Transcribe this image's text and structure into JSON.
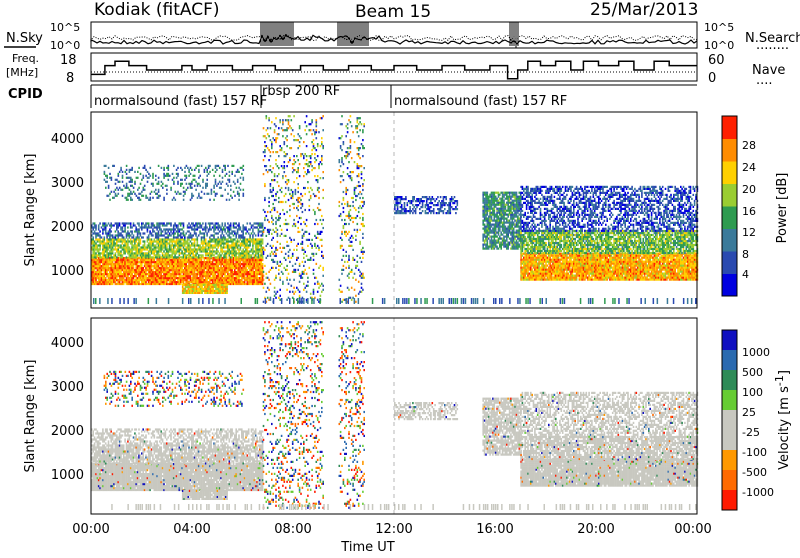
{
  "header": {
    "station": "Kodiak (fitACF)",
    "beam": "Beam 15",
    "date": "25/Mar/2013"
  },
  "noise_panel": {
    "left_label": "N.Sky",
    "right_label": "N.Search",
    "right_dots": "........",
    "tick_top": "10^5",
    "tick_bottom": "10^0",
    "right_tick_top": "10^5",
    "right_tick_bottom": "10^0"
  },
  "freq_panel": {
    "left_label_1": "Freq.",
    "left_label_2": "[MHz]",
    "tick_top": "18",
    "tick_bottom": "8",
    "right_label": "Nave",
    "right_dots": "....",
    "right_tick_top": "60",
    "right_tick_bottom": "0",
    "freq_steps": [
      [
        0,
        11
      ],
      [
        0.55,
        11
      ],
      [
        0.55,
        15
      ],
      [
        0.95,
        15
      ],
      [
        0.95,
        17
      ],
      [
        1.5,
        17
      ],
      [
        1.5,
        15
      ],
      [
        2.2,
        15
      ],
      [
        2.2,
        13
      ],
      [
        3.0,
        13
      ],
      [
        3.0,
        13
      ],
      [
        3.6,
        13
      ],
      [
        3.6,
        15
      ],
      [
        4.0,
        15
      ],
      [
        4.0,
        13
      ],
      [
        4.6,
        13
      ],
      [
        4.6,
        15
      ],
      [
        5.6,
        15
      ],
      [
        5.6,
        13
      ],
      [
        6.4,
        13
      ],
      [
        6.4,
        15
      ],
      [
        7.3,
        15
      ],
      [
        7.3,
        13
      ],
      [
        8.3,
        13
      ],
      [
        8.3,
        15
      ],
      [
        9.2,
        15
      ],
      [
        9.2,
        13
      ],
      [
        10.2,
        13
      ],
      [
        10.2,
        15
      ],
      [
        11.1,
        15
      ],
      [
        11.1,
        13
      ],
      [
        12.0,
        13
      ],
      [
        12.0,
        15
      ],
      [
        12.9,
        15
      ],
      [
        12.9,
        13
      ],
      [
        13.9,
        13
      ],
      [
        13.9,
        15
      ],
      [
        14.8,
        15
      ],
      [
        14.8,
        13
      ],
      [
        15.8,
        13
      ],
      [
        15.8,
        15
      ],
      [
        16.5,
        15
      ],
      [
        16.5,
        9
      ],
      [
        16.9,
        9
      ],
      [
        16.9,
        13
      ],
      [
        17.3,
        13
      ],
      [
        17.3,
        17
      ],
      [
        17.8,
        17
      ],
      [
        17.8,
        15
      ],
      [
        18.4,
        15
      ],
      [
        18.4,
        17
      ],
      [
        19.0,
        17
      ],
      [
        19.0,
        13
      ],
      [
        19.5,
        13
      ],
      [
        19.5,
        17
      ],
      [
        20.1,
        17
      ],
      [
        20.1,
        15
      ],
      [
        20.9,
        15
      ],
      [
        20.9,
        17
      ],
      [
        21.5,
        17
      ],
      [
        21.5,
        13
      ],
      [
        22.3,
        13
      ],
      [
        22.3,
        17
      ],
      [
        22.9,
        17
      ],
      [
        22.9,
        15
      ],
      [
        24,
        15
      ]
    ]
  },
  "cpid": {
    "label": "CPID",
    "segments": [
      {
        "start": 0,
        "end": 6.8,
        "text": "normalsound (fast) 157 RF"
      },
      {
        "start": 6.8,
        "end": 12.0,
        "text": "rbsp 200 RF"
      },
      {
        "start": 12.0,
        "end": 24.0,
        "text": "normalsound (fast) 157 RF"
      }
    ]
  },
  "power_panel": {
    "ylabel": "Slant Range [km]",
    "yticks": [
      "1000",
      "2000",
      "3000",
      "4000"
    ],
    "colorbar_label": "Power [dB]",
    "colorbar_ticks": [
      "4",
      "8",
      "12",
      "16",
      "20",
      "24",
      "28"
    ],
    "colors": [
      "#0000e0",
      "#2a4ab0",
      "#3a7a9a",
      "#2e9b50",
      "#9acd32",
      "#ffd000",
      "#ff8c00",
      "#ff2000"
    ]
  },
  "velocity_panel": {
    "ylabel": "Slant Range [km]",
    "yticks": [
      "1000",
      "2000",
      "3000",
      "4000"
    ],
    "colorbar_label": "Velocity [m s",
    "colorbar_label_sup": "-1",
    "colorbar_label_end": "]",
    "colorbar_ticks": [
      "1000",
      "500",
      "100",
      "25",
      "-25",
      "-100",
      "-500",
      "-1000"
    ],
    "colors": [
      "#1010c0",
      "#2a6ab0",
      "#2e8b57",
      "#66cc33",
      "#c8c8c0",
      "#c8c8c0",
      "#ff9900",
      "#ff6a00",
      "#ff1a00"
    ]
  },
  "time_axis": {
    "label": "Time UT",
    "ticks": [
      "00:00",
      "04:00",
      "08:00",
      "12:00",
      "16:00",
      "20:00",
      "00:00"
    ]
  },
  "chart_data": {
    "type": "heatmap",
    "title": "Kodiak (fitACF) Beam 15 25/Mar/2013",
    "xlabel": "Time UT",
    "ylabel": "Slant Range [km]",
    "xlim": [
      0,
      24
    ],
    "ylim": [
      180,
      4600
    ],
    "power_range_db": [
      0,
      32
    ],
    "velocity_range": [
      -1500,
      1500
    ],
    "regions": [
      {
        "t0": 0.0,
        "t1": 6.8,
        "r0": 700,
        "r1": 1300,
        "level": "strong",
        "power_db": 26
      },
      {
        "t0": 0.0,
        "t1": 6.8,
        "r0": 1300,
        "r1": 1750,
        "level": "medium",
        "power_db": 18
      },
      {
        "t0": 0.0,
        "t1": 6.8,
        "r0": 1750,
        "r1": 2100,
        "level": "weak",
        "power_db": 8
      },
      {
        "t0": 0.5,
        "t1": 6.0,
        "r0": 2600,
        "r1": 3400,
        "level": "sparse",
        "power_db": 10
      },
      {
        "t0": 3.6,
        "t1": 5.4,
        "r0": 500,
        "r1": 700,
        "level": "strong",
        "power_db": 22
      },
      {
        "t0": 6.8,
        "t1": 9.2,
        "r0": 300,
        "r1": 4500,
        "level": "noise",
        "power_db": 10
      },
      {
        "t0": 9.8,
        "t1": 10.8,
        "r0": 300,
        "r1": 4500,
        "level": "noise",
        "power_db": 8
      },
      {
        "t0": 12.0,
        "t1": 14.5,
        "r0": 2300,
        "r1": 2700,
        "level": "weak",
        "power_db": 6
      },
      {
        "t0": 15.5,
        "t1": 17.0,
        "r0": 1500,
        "r1": 2800,
        "level": "medium",
        "power_db": 12
      },
      {
        "t0": 17.0,
        "t1": 24.0,
        "r0": 800,
        "r1": 1400,
        "level": "strong",
        "power_db": 24
      },
      {
        "t0": 17.0,
        "t1": 24.0,
        "r0": 1400,
        "r1": 1900,
        "level": "medium",
        "power_db": 16
      },
      {
        "t0": 17.0,
        "t1": 24.0,
        "r0": 1900,
        "r1": 2900,
        "level": "weak",
        "power_db": 6
      }
    ]
  }
}
